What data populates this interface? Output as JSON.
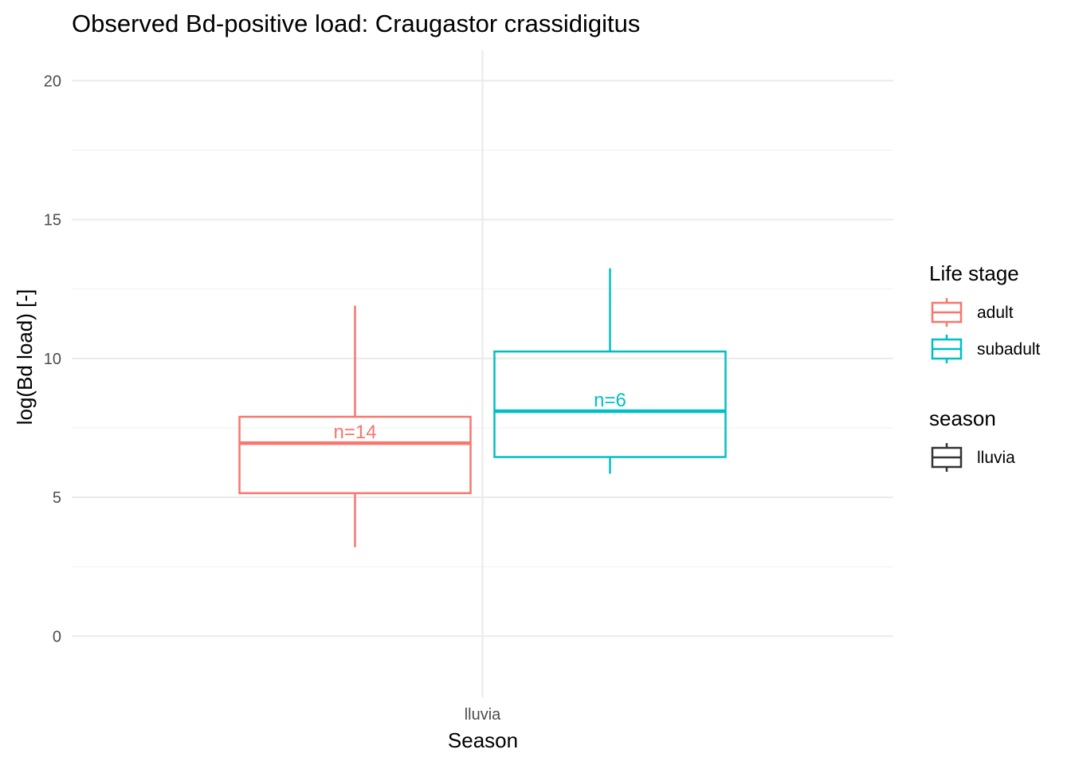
{
  "chart_data": {
    "type": "box",
    "title": "Observed Bd-positive load: Craugastor crassidigitus",
    "xlabel": "Season",
    "ylabel": "log(Bd load) [-]",
    "ylim": [
      -2.2,
      21.1
    ],
    "yticks": [
      0,
      5,
      10,
      15,
      20
    ],
    "grid": true,
    "categories": [
      "lluvia"
    ],
    "series": [
      {
        "name": "adult",
        "color": "#F8766D",
        "category": "lluvia",
        "whisker_low": 3.2,
        "q1": 5.15,
        "median": 6.95,
        "q3": 7.9,
        "whisker_high": 11.9,
        "n_label": "n=14"
      },
      {
        "name": "subadult",
        "color": "#00BFC4",
        "category": "lluvia",
        "whisker_low": 5.85,
        "q1": 6.45,
        "median": 8.1,
        "q3": 10.25,
        "whisker_high": 13.25,
        "n_label": "n=6"
      }
    ],
    "legends": [
      {
        "title": "Life stage",
        "entries": [
          "adult",
          "subadult"
        ],
        "placement": "right"
      },
      {
        "title": "season",
        "entries": [
          "lluvia"
        ],
        "placement": "right"
      }
    ]
  }
}
